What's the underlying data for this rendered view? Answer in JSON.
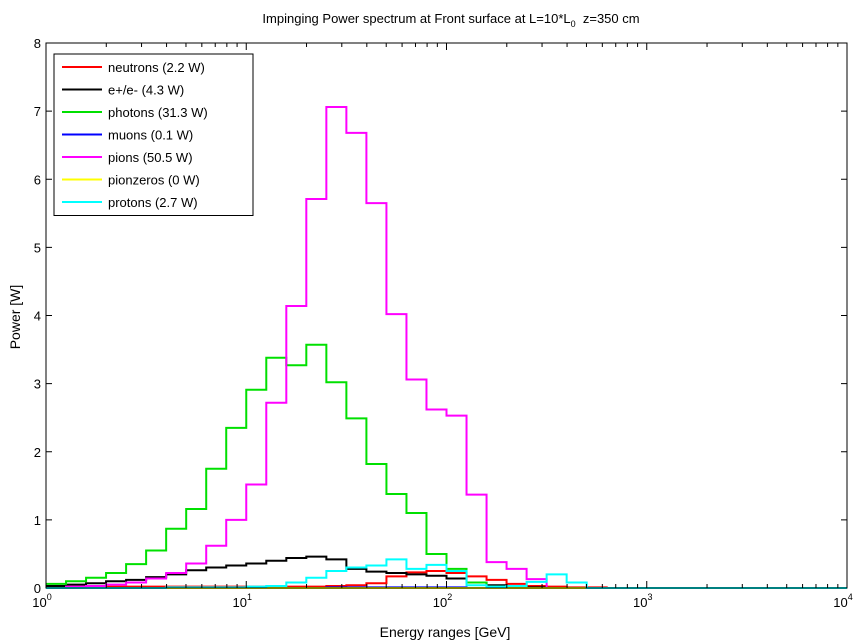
{
  "chart_data": {
    "type": "line",
    "title_main": "Impinging Power spectrum at Front surface at L=10*L",
    "title_sub": "0",
    "title_rest": "  z=350 cm",
    "xlabel": "Energy ranges [GeV]",
    "ylabel": "Power [W]",
    "xscale": "log",
    "xlim": [
      1,
      10000
    ],
    "ylim": [
      0,
      8
    ],
    "grid": false,
    "legend_placement": "top-left",
    "x_ticks": [
      {
        "base": "10",
        "exp": "0",
        "value": 1
      },
      {
        "base": "10",
        "exp": "1",
        "value": 10
      },
      {
        "base": "10",
        "exp": "2",
        "value": 100
      },
      {
        "base": "10",
        "exp": "3",
        "value": 1000
      },
      {
        "base": "10",
        "exp": "4",
        "value": 10000
      }
    ],
    "y_ticks": [
      "0",
      "1",
      "2",
      "3",
      "4",
      "5",
      "6",
      "7",
      "8"
    ],
    "bin_edges": [
      1,
      1.259,
      1.585,
      1.995,
      2.512,
      3.162,
      3.981,
      5.012,
      6.31,
      7.943,
      10,
      12.59,
      15.85,
      19.95,
      25.12,
      31.62,
      39.81,
      50.12,
      63.1,
      79.43,
      100,
      125.9,
      158.5,
      199.5,
      251.2,
      316.2,
      398.1,
      501.2,
      631,
      794.3,
      1000,
      10000
    ],
    "series": [
      {
        "name": "neutrons (2.2 W)",
        "color": "#ff0000",
        "values": [
          0.02,
          0.02,
          0.02,
          0.02,
          0.02,
          0.02,
          0.02,
          0.02,
          0.02,
          0.02,
          0.02,
          0.02,
          0.02,
          0.02,
          0.03,
          0.04,
          0.07,
          0.17,
          0.23,
          0.25,
          0.22,
          0.17,
          0.12,
          0.06,
          0.03,
          0.02,
          0.01,
          0.01,
          0.0,
          0.0,
          0.0
        ]
      },
      {
        "name": "e+/e- (4.3 W)",
        "color": "#000000",
        "values": [
          0.03,
          0.05,
          0.07,
          0.1,
          0.12,
          0.16,
          0.2,
          0.26,
          0.3,
          0.33,
          0.36,
          0.4,
          0.44,
          0.46,
          0.42,
          0.28,
          0.24,
          0.22,
          0.2,
          0.18,
          0.14,
          0.08,
          0.04,
          0.02,
          0.01,
          0.0,
          0.0,
          0.0,
          0.0,
          0.0,
          0.0
        ]
      },
      {
        "name": "photons (31.3 W)",
        "color": "#00e000",
        "values": [
          0.06,
          0.1,
          0.15,
          0.22,
          0.35,
          0.55,
          0.87,
          1.16,
          1.75,
          2.35,
          2.91,
          3.38,
          3.27,
          3.57,
          3.02,
          2.49,
          1.82,
          1.38,
          1.1,
          0.5,
          0.28,
          0.08,
          0.02,
          0.0,
          0.0,
          0.0,
          0.0,
          0.0,
          0.0,
          0.0,
          0.0
        ]
      },
      {
        "name": "muons (0.1 W)",
        "color": "#0000ff",
        "values": [
          0.0,
          0.0,
          0.0,
          0.0,
          0.0,
          0.0,
          0.0,
          0.0,
          0.0,
          0.0,
          0.0,
          0.0,
          0.0,
          0.0,
          0.01,
          0.01,
          0.01,
          0.01,
          0.01,
          0.01,
          0.01,
          0.0,
          0.0,
          0.0,
          0.0,
          0.0,
          0.0,
          0.0,
          0.0,
          0.0,
          0.0
        ]
      },
      {
        "name": "pions (50.5 W)",
        "color": "#ff00ff",
        "values": [
          0.0,
          0.02,
          0.03,
          0.05,
          0.08,
          0.14,
          0.22,
          0.36,
          0.62,
          1.0,
          1.52,
          2.72,
          4.14,
          5.71,
          7.06,
          6.68,
          5.65,
          4.02,
          3.06,
          2.62,
          2.53,
          1.37,
          0.38,
          0.28,
          0.13,
          0.0,
          0.0,
          0.0,
          0.0,
          0.0,
          0.0
        ]
      },
      {
        "name": "pionzeros (0 W)",
        "color": "#ffff00",
        "values": [
          0.0,
          0.0,
          0.0,
          0.0,
          0.0,
          0.0,
          0.0,
          0.0,
          0.0,
          0.0,
          0.0,
          0.0,
          0.0,
          0.0,
          0.0,
          0.0,
          0.0,
          0.0,
          0.0,
          0.0,
          0.0,
          0.0,
          0.0,
          0.0,
          0.0,
          0.0,
          0.0,
          0.0,
          0.0,
          0.0,
          0.0
        ]
      },
      {
        "name": "protons (2.7 W)",
        "color": "#00ffff",
        "values": [
          0.0,
          0.0,
          0.0,
          0.0,
          0.0,
          0.0,
          0.01,
          0.01,
          0.01,
          0.01,
          0.02,
          0.03,
          0.08,
          0.15,
          0.25,
          0.3,
          0.33,
          0.42,
          0.28,
          0.34,
          0.25,
          0.04,
          0.02,
          0.03,
          0.09,
          0.2,
          0.08,
          0.0,
          0.0,
          0.0,
          0.0
        ]
      }
    ]
  }
}
